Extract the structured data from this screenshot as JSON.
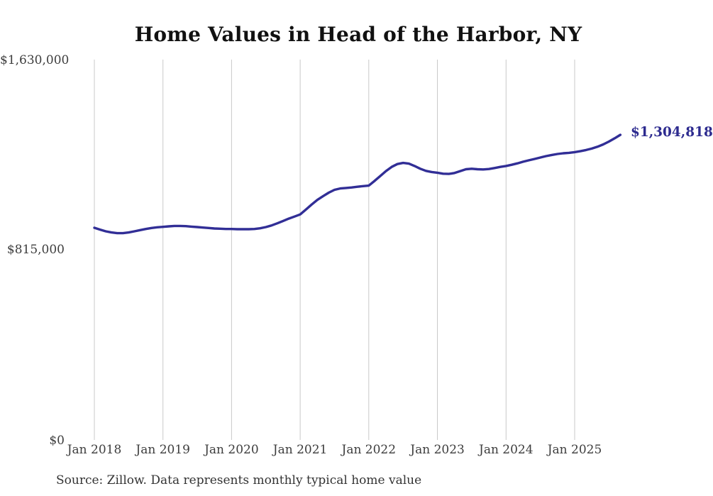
{
  "chart_data": {
    "type": "line",
    "title": "Home Values in Head of the Harbor, NY",
    "xlabel": "",
    "ylabel": "",
    "ylim": [
      0,
      1630000
    ],
    "grid": "vertical-yearly-gridlines",
    "legend_position": "none",
    "line_color": "#312e96",
    "grid_color": "#c9c9c9",
    "tick_label_color": "#3d3d3d",
    "end_label": "$1,304,818",
    "latest_value": 1304818,
    "y_ticks": [
      {
        "label": "$0",
        "value": 0
      },
      {
        "label": "$815,000",
        "value": 815000
      },
      {
        "label": "$1,630,000",
        "value": 1630000
      }
    ],
    "x_ticks": [
      "Jan 2018",
      "Jan 2019",
      "Jan 2020",
      "Jan 2021",
      "Jan 2022",
      "Jan 2023",
      "Jan 2024",
      "Jan 2025"
    ],
    "series": [
      {
        "name": "Monthly typical home value",
        "x_start": "2018-01",
        "x_end": "2025-09",
        "values": [
          908000,
          900000,
          893000,
          888000,
          885000,
          885000,
          888000,
          893000,
          898000,
          903000,
          907000,
          910000,
          912000,
          914000,
          916000,
          916000,
          915000,
          913000,
          911000,
          909000,
          907000,
          905000,
          904000,
          903000,
          903000,
          902000,
          902000,
          902000,
          903000,
          906000,
          911000,
          918000,
          927000,
          937000,
          947000,
          956000,
          965000,
          986000,
          1007000,
          1027000,
          1043000,
          1058000,
          1070000,
          1076000,
          1078000,
          1080000,
          1083000,
          1086000,
          1088000,
          1108000,
          1129000,
          1150000,
          1168000,
          1180000,
          1185000,
          1182000,
          1172000,
          1160000,
          1151000,
          1146000,
          1143000,
          1139000,
          1138000,
          1142000,
          1150000,
          1158000,
          1160000,
          1158000,
          1157000,
          1159000,
          1163000,
          1168000,
          1172000,
          1177000,
          1183000,
          1190000,
          1196000,
          1202000,
          1208000,
          1214000,
          1219000,
          1223000,
          1226000,
          1228000,
          1231000,
          1235000,
          1240000,
          1246000,
          1254000,
          1264000,
          1276000,
          1290000,
          1304818
        ]
      }
    ],
    "source_note": "Source: Zillow. Data represents monthly typical home value"
  }
}
